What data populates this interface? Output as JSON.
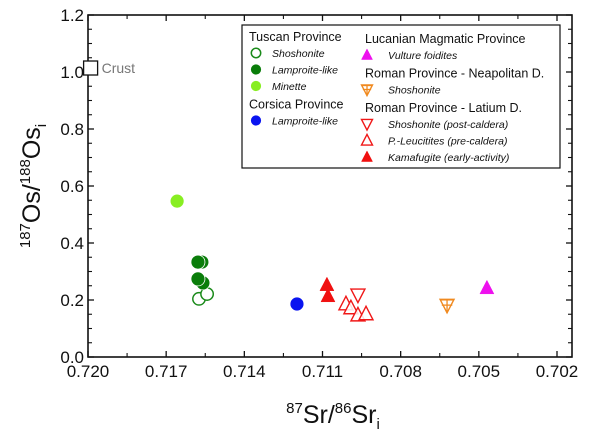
{
  "chart_data": {
    "type": "scatter",
    "xlabel": {
      "sup1": "87",
      "main1": "Sr/",
      "sup2": "86",
      "main2": "Sr",
      "sub": "i"
    },
    "ylabel": {
      "sup1": "187",
      "main1": "Os/",
      "sup2": "188",
      "main2": "Os",
      "sub": "i"
    },
    "xlim": [
      0.72,
      0.702
    ],
    "ylim": [
      0.0,
      1.2
    ],
    "x_reversed": true,
    "xticks": [
      "0.720",
      "0.717",
      "0.714",
      "0.711",
      "0.708",
      "0.705",
      "0.702"
    ],
    "xtick_values": [
      0.72,
      0.717,
      0.714,
      0.711,
      0.708,
      0.705,
      0.702
    ],
    "yticks": [
      "0.0",
      "0.2",
      "0.4",
      "0.6",
      "0.8",
      "1.0",
      "1.2"
    ],
    "ytick_values": [
      0.0,
      0.2,
      0.4,
      0.6,
      0.8,
      1.0,
      1.2
    ],
    "grid": false,
    "legend_position": "top-right",
    "annotation": {
      "label": "Crust",
      "x": 0.7199,
      "y": 1.014,
      "color": "#777777"
    },
    "legend": {
      "left_groups": [
        {
          "title": "Tuscan Province",
          "items": [
            {
              "label": "Shoshonite",
              "series": "tuscan_shoshonite"
            },
            {
              "label": "Lamproite-like",
              "series": "tuscan_lamproite"
            },
            {
              "label": "Minette",
              "series": "tuscan_minette"
            }
          ]
        },
        {
          "title": "Corsica Province",
          "items": [
            {
              "label": "Lamproite-like",
              "series": "corsica_lamproite"
            }
          ]
        }
      ],
      "right_groups": [
        {
          "title": "Lucanian Magmatic Province",
          "items": [
            {
              "label": "Vulture foidites",
              "series": "vulture"
            }
          ]
        },
        {
          "title": "Roman Province - Neapolitan D.",
          "items": [
            {
              "label": "Shoshonite",
              "series": "neapolitan_shoshonite"
            }
          ]
        },
        {
          "title": "Roman Province - Latium D.",
          "items": [
            {
              "label": "Shoshonite (post-caldera)",
              "series": "latium_post"
            },
            {
              "label": "P.-Leucitites (pre-caldera)",
              "series": "latium_pre"
            },
            {
              "label": "Kamafugite (early-activity)",
              "series": "latium_kama"
            }
          ]
        }
      ]
    },
    "series": [
      {
        "id": "tuscan_shoshonite",
        "name": "Shoshonite",
        "marker": "circle-open",
        "color": "#1a8a1a",
        "points": [
          [
            0.71574,
            0.204
          ],
          [
            0.71543,
            0.221
          ]
        ]
      },
      {
        "id": "tuscan_lamproite",
        "name": "Lamproite-like",
        "marker": "circle-filled",
        "color": "#0a7d0a",
        "points": [
          [
            0.71563,
            0.333
          ],
          [
            0.71578,
            0.333
          ],
          [
            0.71559,
            0.26
          ],
          [
            0.71578,
            0.274
          ]
        ]
      },
      {
        "id": "tuscan_minette",
        "name": "Minette",
        "marker": "circle-filled",
        "color": "#88ee22",
        "points": [
          [
            0.71658,
            0.547
          ]
        ]
      },
      {
        "id": "corsica_lamproite",
        "name": "Lamproite-like",
        "marker": "circle-filled",
        "color": "#0a14f0",
        "points": [
          [
            0.71198,
            0.186
          ]
        ]
      },
      {
        "id": "vulture",
        "name": "Vulture foidites",
        "marker": "triangle-up-filled",
        "color": "#ee10ee",
        "points": [
          [
            0.70469,
            0.242
          ]
        ]
      },
      {
        "id": "neapolitan_shoshonite",
        "name": "Shoshonite",
        "marker": "triangle-down-cross",
        "color": "#f08a20",
        "points": [
          [
            0.70622,
            0.182
          ]
        ]
      },
      {
        "id": "latium_post",
        "name": "Shoshonite (post-caldera)",
        "marker": "triangle-down-open",
        "color": "#f01818",
        "points": [
          [
            0.70964,
            0.218
          ]
        ]
      },
      {
        "id": "latium_pre",
        "name": "P.-Leucitites (pre-caldera)",
        "marker": "triangle-up-open",
        "color": "#f01818",
        "points": [
          [
            0.7101,
            0.186
          ],
          [
            0.70991,
            0.172
          ],
          [
            0.70964,
            0.147
          ],
          [
            0.70933,
            0.151
          ]
        ]
      },
      {
        "id": "latium_kama",
        "name": "Kamafugite (early-activity)",
        "marker": "triangle-up-filled",
        "color": "#f01010",
        "points": [
          [
            0.71083,
            0.253
          ],
          [
            0.71079,
            0.214
          ]
        ]
      }
    ]
  }
}
